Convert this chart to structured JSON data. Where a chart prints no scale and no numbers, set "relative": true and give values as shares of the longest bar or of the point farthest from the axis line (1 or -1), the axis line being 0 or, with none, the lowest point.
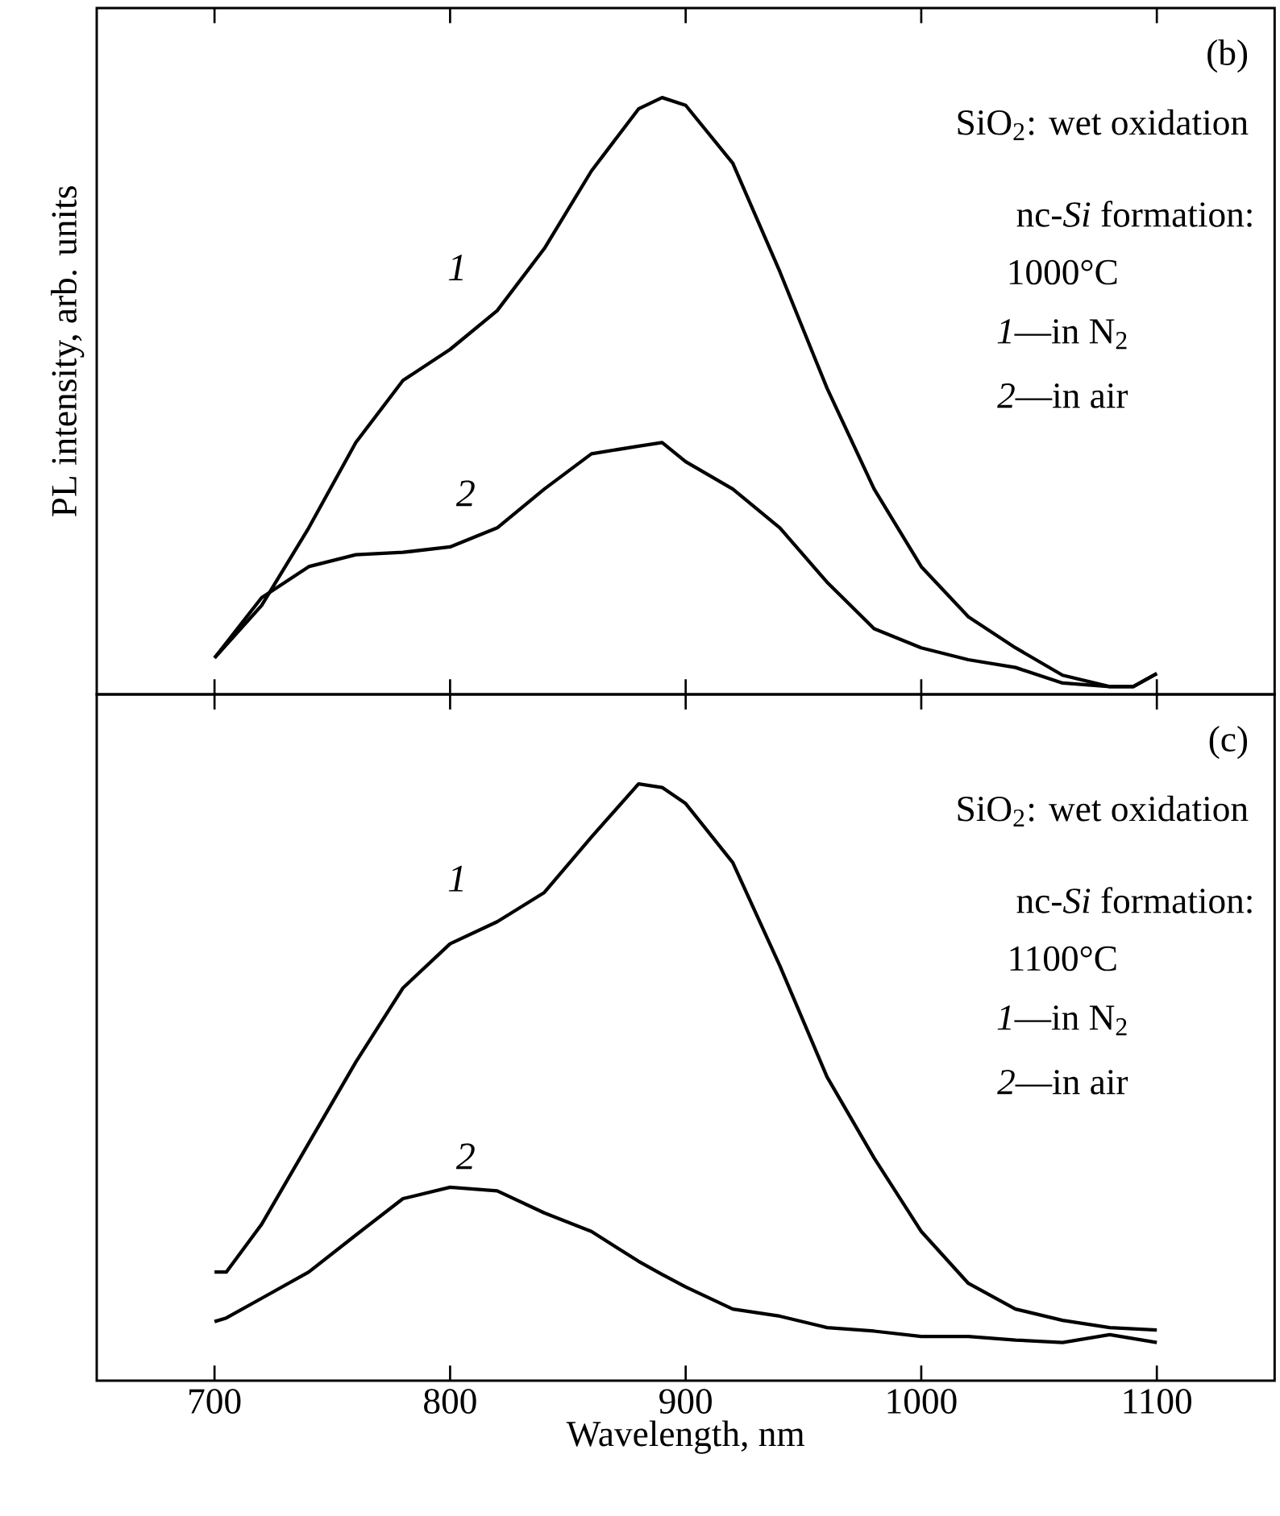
{
  "chart_data": [
    {
      "type": "line",
      "ylabel": "PL intensity, arb. units",
      "relative": true,
      "xlim": [
        650,
        1150
      ],
      "xticks": [
        700,
        800,
        900,
        1000,
        1100
      ],
      "tick_labels": false,
      "marker": "none",
      "line_style": "solid",
      "grid": false,
      "x": [
        700,
        720,
        740,
        760,
        780,
        800,
        820,
        840,
        860,
        880,
        890,
        900,
        920,
        940,
        960,
        980,
        1000,
        1020,
        1040,
        1060,
        1080,
        1090,
        1100
      ],
      "series": [
        {
          "name": "1",
          "color": "#000000",
          "values": [
            0.061,
            0.149,
            0.279,
            0.422,
            0.526,
            0.578,
            0.643,
            0.747,
            0.877,
            0.981,
            1.0,
            0.987,
            0.89,
            0.708,
            0.513,
            0.344,
            0.214,
            0.13,
            0.078,
            0.032,
            0.013,
            0.013,
            0.035
          ]
        },
        {
          "name": "2",
          "color": "#000000",
          "values": [
            0.061,
            0.162,
            0.214,
            0.234,
            0.238,
            0.247,
            0.279,
            0.344,
            0.403,
            0.416,
            0.422,
            0.39,
            0.344,
            0.279,
            0.188,
            0.11,
            0.078,
            0.058,
            0.045,
            0.019,
            0.013,
            0.013,
            0.035
          ]
        }
      ],
      "annotations": [
        "(b)",
        "SiO$_{2}$: wet oxidation",
        "nc-*Si* formation:",
        "1000°C",
        "*1*—in N$_{2}$",
        "*2*—in air"
      ]
    },
    {
      "type": "line",
      "xlabel": "Wavelength, nm",
      "relative": true,
      "xlim": [
        650,
        1150
      ],
      "xticks": [
        700,
        800,
        900,
        1000,
        1100
      ],
      "tick_labels": "x",
      "marker": "none",
      "line_style": "solid",
      "grid": false,
      "x": [
        700,
        705,
        720,
        740,
        760,
        780,
        800,
        820,
        840,
        860,
        880,
        890,
        900,
        920,
        940,
        960,
        980,
        1000,
        1020,
        1040,
        1060,
        1080,
        1100
      ],
      "series": [
        {
          "name": "1",
          "color": "#000000",
          "values": [
            0.182,
            0.182,
            0.262,
            0.398,
            0.534,
            0.658,
            0.732,
            0.769,
            0.818,
            0.911,
            1.0,
            0.994,
            0.967,
            0.868,
            0.695,
            0.509,
            0.373,
            0.25,
            0.163,
            0.12,
            0.101,
            0.089,
            0.085
          ]
        },
        {
          "name": "2",
          "color": "#000000",
          "values": [
            0.099,
            0.105,
            0.138,
            0.182,
            0.244,
            0.305,
            0.324,
            0.318,
            0.281,
            0.25,
            0.2,
            0.178,
            0.157,
            0.12,
            0.108,
            0.089,
            0.083,
            0.074,
            0.074,
            0.068,
            0.064,
            0.077,
            0.064
          ]
        }
      ],
      "annotations": [
        "(c)",
        "SiO$_{2}$: wet oxidation",
        "nc-*Si* formation:",
        "1100°C",
        "*1*—in N$_{2}$",
        "*2*—in air"
      ]
    }
  ]
}
